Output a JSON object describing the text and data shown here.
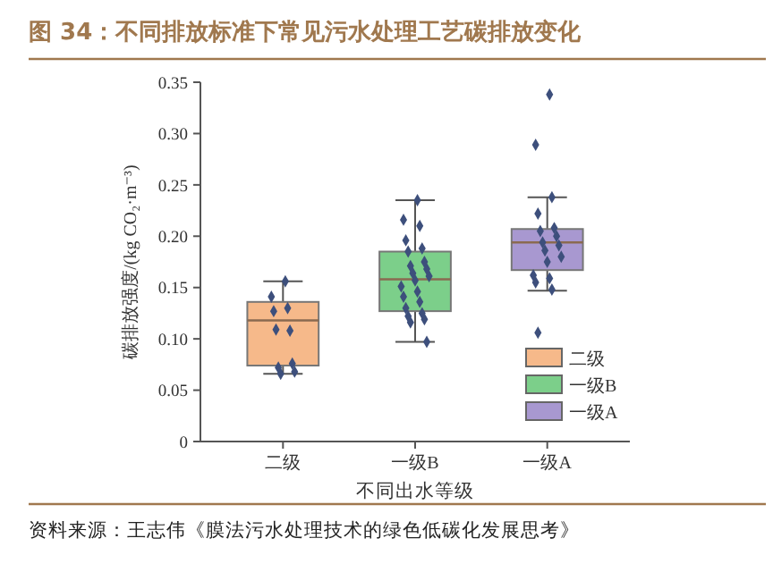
{
  "chart_data": {
    "type": "box",
    "title": "图 34：不同排放标准下常见污水处理工艺碳排放变化",
    "xlabel": "不同出水等级",
    "ylabel": "碳排放强度/(kg CO₂·m⁻³)",
    "annotations": [
      "资料来源：王志伟《膜法污水处理技术的绿色低碳化发展思考》"
    ],
    "categories": [
      "二级",
      "一级B",
      "一级A"
    ],
    "series": [
      {
        "name": "二级",
        "color": "#f6b98a",
        "boxes": [
          {
            "low": 0.066,
            "q1": 0.074,
            "median": 0.118,
            "q3": 0.136,
            "high": 0.156
          },
          null,
          null
        ]
      },
      {
        "name": "一级B",
        "color": "#7ccf8a",
        "boxes": [
          null,
          {
            "low": 0.097,
            "q1": 0.127,
            "median": 0.158,
            "q3": 0.185,
            "high": 0.235
          },
          null
        ]
      },
      {
        "name": "一级A",
        "color": "#a898d0",
        "boxes": [
          null,
          null,
          {
            "low": 0.147,
            "q1": 0.167,
            "median": 0.194,
            "q3": 0.207,
            "high": 0.238
          }
        ]
      },
      {
        "type": "scatter",
        "color": "#3d4f7c",
        "x": [
          "二级",
          "二级",
          "二级",
          "二级",
          "二级",
          "二级",
          "二级",
          "二级",
          "二级",
          "二级",
          "一级B",
          "一级B",
          "一级B",
          "一级B",
          "一级B",
          "一级B",
          "一级B",
          "一级B",
          "一级B",
          "一级B",
          "一级B",
          "一级B",
          "一级B",
          "一级B",
          "一级B",
          "一级B",
          "一级B",
          "一级B",
          "一级B",
          "一级B",
          "一级B",
          "一级B",
          "一级A",
          "一级A",
          "一级A",
          "一级A",
          "一级A",
          "一级A",
          "一级A",
          "一级A",
          "一级A",
          "一级A",
          "一级A",
          "一级A",
          "一级A",
          "一级A",
          "一级A",
          "一级A",
          "一级A"
        ],
        "values": [
          0.156,
          0.141,
          0.13,
          0.127,
          0.108,
          0.109,
          0.076,
          0.072,
          0.068,
          0.066,
          0.235,
          0.216,
          0.21,
          0.196,
          0.188,
          0.185,
          0.175,
          0.171,
          0.168,
          0.164,
          0.161,
          0.157,
          0.151,
          0.146,
          0.141,
          0.136,
          0.13,
          0.125,
          0.122,
          0.119,
          0.116,
          0.097,
          0.338,
          0.289,
          0.238,
          0.222,
          0.208,
          0.205,
          0.2,
          0.194,
          0.191,
          0.186,
          0.18,
          0.175,
          0.162,
          0.159,
          0.155,
          0.148,
          0.106
        ]
      }
    ],
    "ylim": [
      0,
      0.35
    ],
    "yticks": [
      0,
      {
        "value": 0.05,
        "label": "0.05"
      },
      {
        "value": 0.1,
        "label": "0.10"
      },
      {
        "value": 0.15,
        "label": "0.15"
      },
      {
        "value": 0.2,
        "label": "0.20"
      },
      {
        "value": 0.25,
        "label": "0.25"
      },
      {
        "value": 0.3,
        "label": "0.30"
      },
      {
        "value": 0.35,
        "label": "0.35"
      }
    ],
    "legend": "bottom right",
    "marker": "diamond"
  }
}
